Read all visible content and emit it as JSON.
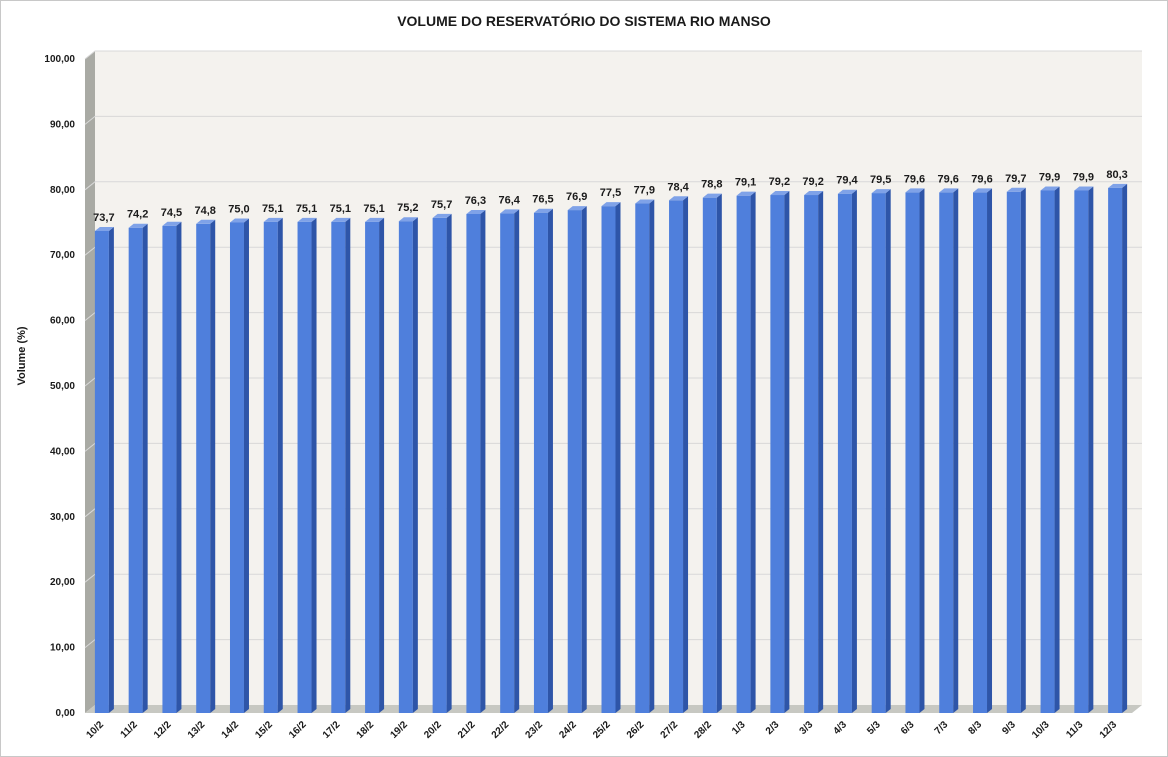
{
  "colors": {
    "bar_front": "#4f7fdc",
    "bar_side": "#2e55a8",
    "bar_top": "#7fa2e8",
    "plot_back": "#f4f2ee",
    "left_wall": "#a9aaa4",
    "floor": "#c7c8c2",
    "gridline": "#d8d8d8"
  },
  "chart_data": {
    "type": "bar",
    "title": "VOLUME DO RESERVATÓRIO DO SISTEMA RIO MANSO",
    "xlabel": "",
    "ylabel": "Volume (%)",
    "ylim": [
      0,
      100
    ],
    "yticks": [
      "0,00",
      "10,00",
      "20,00",
      "30,00",
      "40,00",
      "50,00",
      "60,00",
      "70,00",
      "80,00",
      "90,00",
      "100,00"
    ],
    "ytick_values": [
      0,
      10,
      20,
      30,
      40,
      50,
      60,
      70,
      80,
      90,
      100
    ],
    "grid": true,
    "three_d": true,
    "categories": [
      "10/2",
      "11/2",
      "12/2",
      "13/2",
      "14/2",
      "15/2",
      "16/2",
      "17/2",
      "18/2",
      "19/2",
      "20/2",
      "21/2",
      "22/2",
      "23/2",
      "24/2",
      "25/2",
      "26/2",
      "27/2",
      "28/2",
      "1/3",
      "2/3",
      "3/3",
      "4/3",
      "5/3",
      "6/3",
      "7/3",
      "8/3",
      "9/3",
      "10/3",
      "11/3",
      "12/3"
    ],
    "values": [
      73.7,
      74.2,
      74.5,
      74.8,
      75.0,
      75.1,
      75.1,
      75.1,
      75.1,
      75.2,
      75.7,
      76.3,
      76.4,
      76.5,
      76.9,
      77.5,
      77.9,
      78.4,
      78.8,
      79.1,
      79.2,
      79.2,
      79.4,
      79.5,
      79.6,
      79.6,
      79.6,
      79.7,
      79.9,
      79.9,
      80.3
    ],
    "value_labels": [
      "73,7",
      "74,2",
      "74,5",
      "74,8",
      "75,0",
      "75,1",
      "75,1",
      "75,1",
      "75,1",
      "75,2",
      "75,7",
      "76,3",
      "76,4",
      "76,5",
      "76,9",
      "77,5",
      "77,9",
      "78,4",
      "78,8",
      "79,1",
      "79,2",
      "79,2",
      "79,4",
      "79,5",
      "79,6",
      "79,6",
      "79,6",
      "79,7",
      "79,9",
      "79,9",
      "80,3"
    ]
  }
}
